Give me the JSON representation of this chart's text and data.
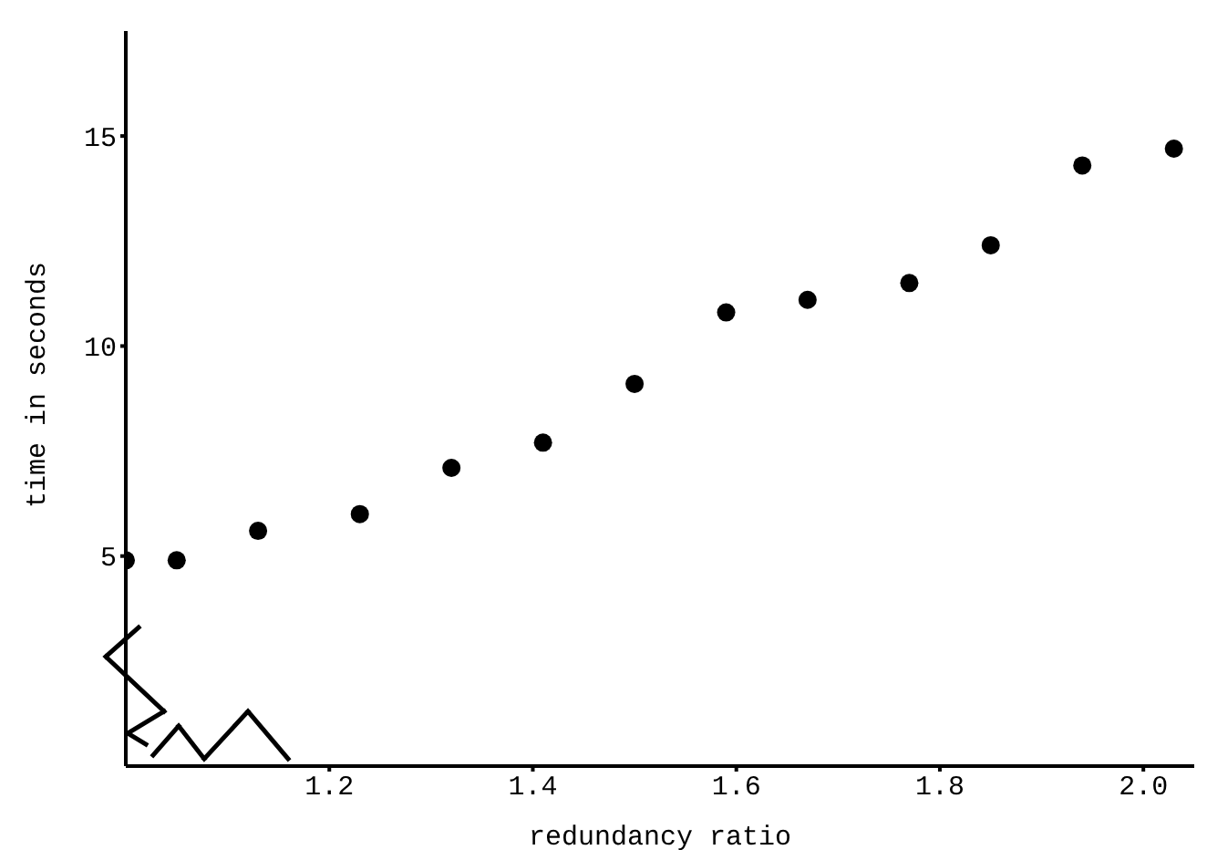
{
  "chart_data": {
    "type": "scatter",
    "xlabel": "redundancy ratio",
    "ylabel": "time in seconds",
    "x": [
      1.0,
      1.05,
      1.13,
      1.23,
      1.32,
      1.41,
      1.5,
      1.59,
      1.67,
      1.77,
      1.85,
      1.94,
      2.03
    ],
    "values": [
      4.9,
      4.9,
      5.6,
      6.0,
      7.1,
      7.7,
      9.1,
      10.8,
      11.1,
      11.5,
      12.4,
      14.3,
      14.7
    ],
    "color": "#000000",
    "marker": "circle",
    "xlim": [
      1.0,
      2.05
    ],
    "xticks": [
      {
        "value": 1.2,
        "label": "1.2"
      },
      {
        "value": 1.4,
        "label": "1.4"
      },
      {
        "value": 1.6,
        "label": "1.6"
      },
      {
        "value": 1.8,
        "label": "1.8"
      },
      {
        "value": 2.0,
        "label": "2.0"
      }
    ],
    "ylim": [
      0,
      17.5
    ],
    "yticks": [
      5,
      10,
      15
    ],
    "grid": false,
    "legend": false
  }
}
